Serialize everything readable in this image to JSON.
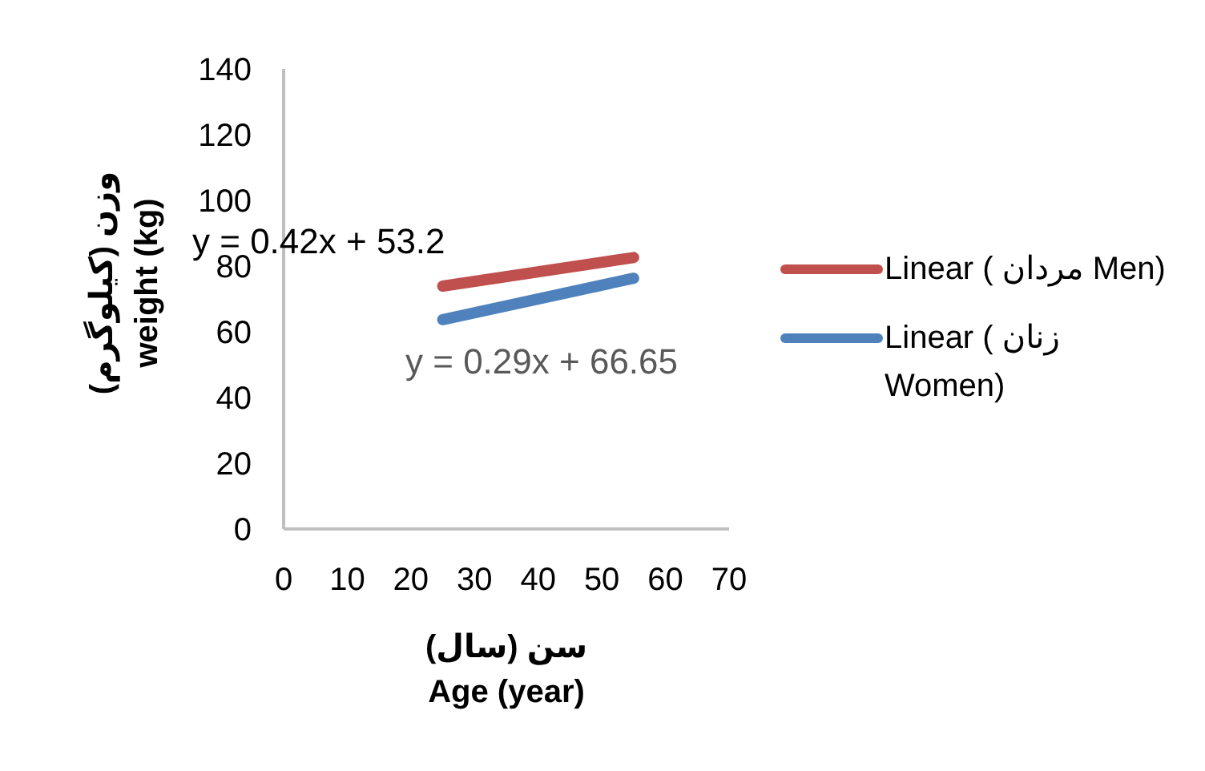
{
  "chart_data": {
    "type": "line",
    "xlabel": "سن   (سال)\nAge (year)",
    "ylabel": "وزن   (کیلوگرم)\nweight (kg)",
    "x": [
      25,
      55
    ],
    "series": [
      {
        "name": "Linear ( مردان Men)",
        "color": "#c0504d",
        "values": [
          73.9,
          82.6
        ]
      },
      {
        "name": "Linear ( زنان Women)",
        "color": "#4f81bd",
        "values": [
          63.7,
          76.3
        ]
      }
    ],
    "annotations": [
      "y = 0.42x + 53.2",
      "y = 0.29x + 66.65"
    ],
    "xlim": [
      0,
      70
    ],
    "xticks": [
      0,
      10,
      20,
      30,
      40,
      50,
      60,
      70
    ],
    "ylim": [
      0,
      140
    ],
    "yticks": [
      0,
      20,
      40,
      60,
      80,
      100,
      120,
      140
    ],
    "grid": false,
    "legend": "right",
    "marker": "none",
    "line_style": "solid"
  }
}
